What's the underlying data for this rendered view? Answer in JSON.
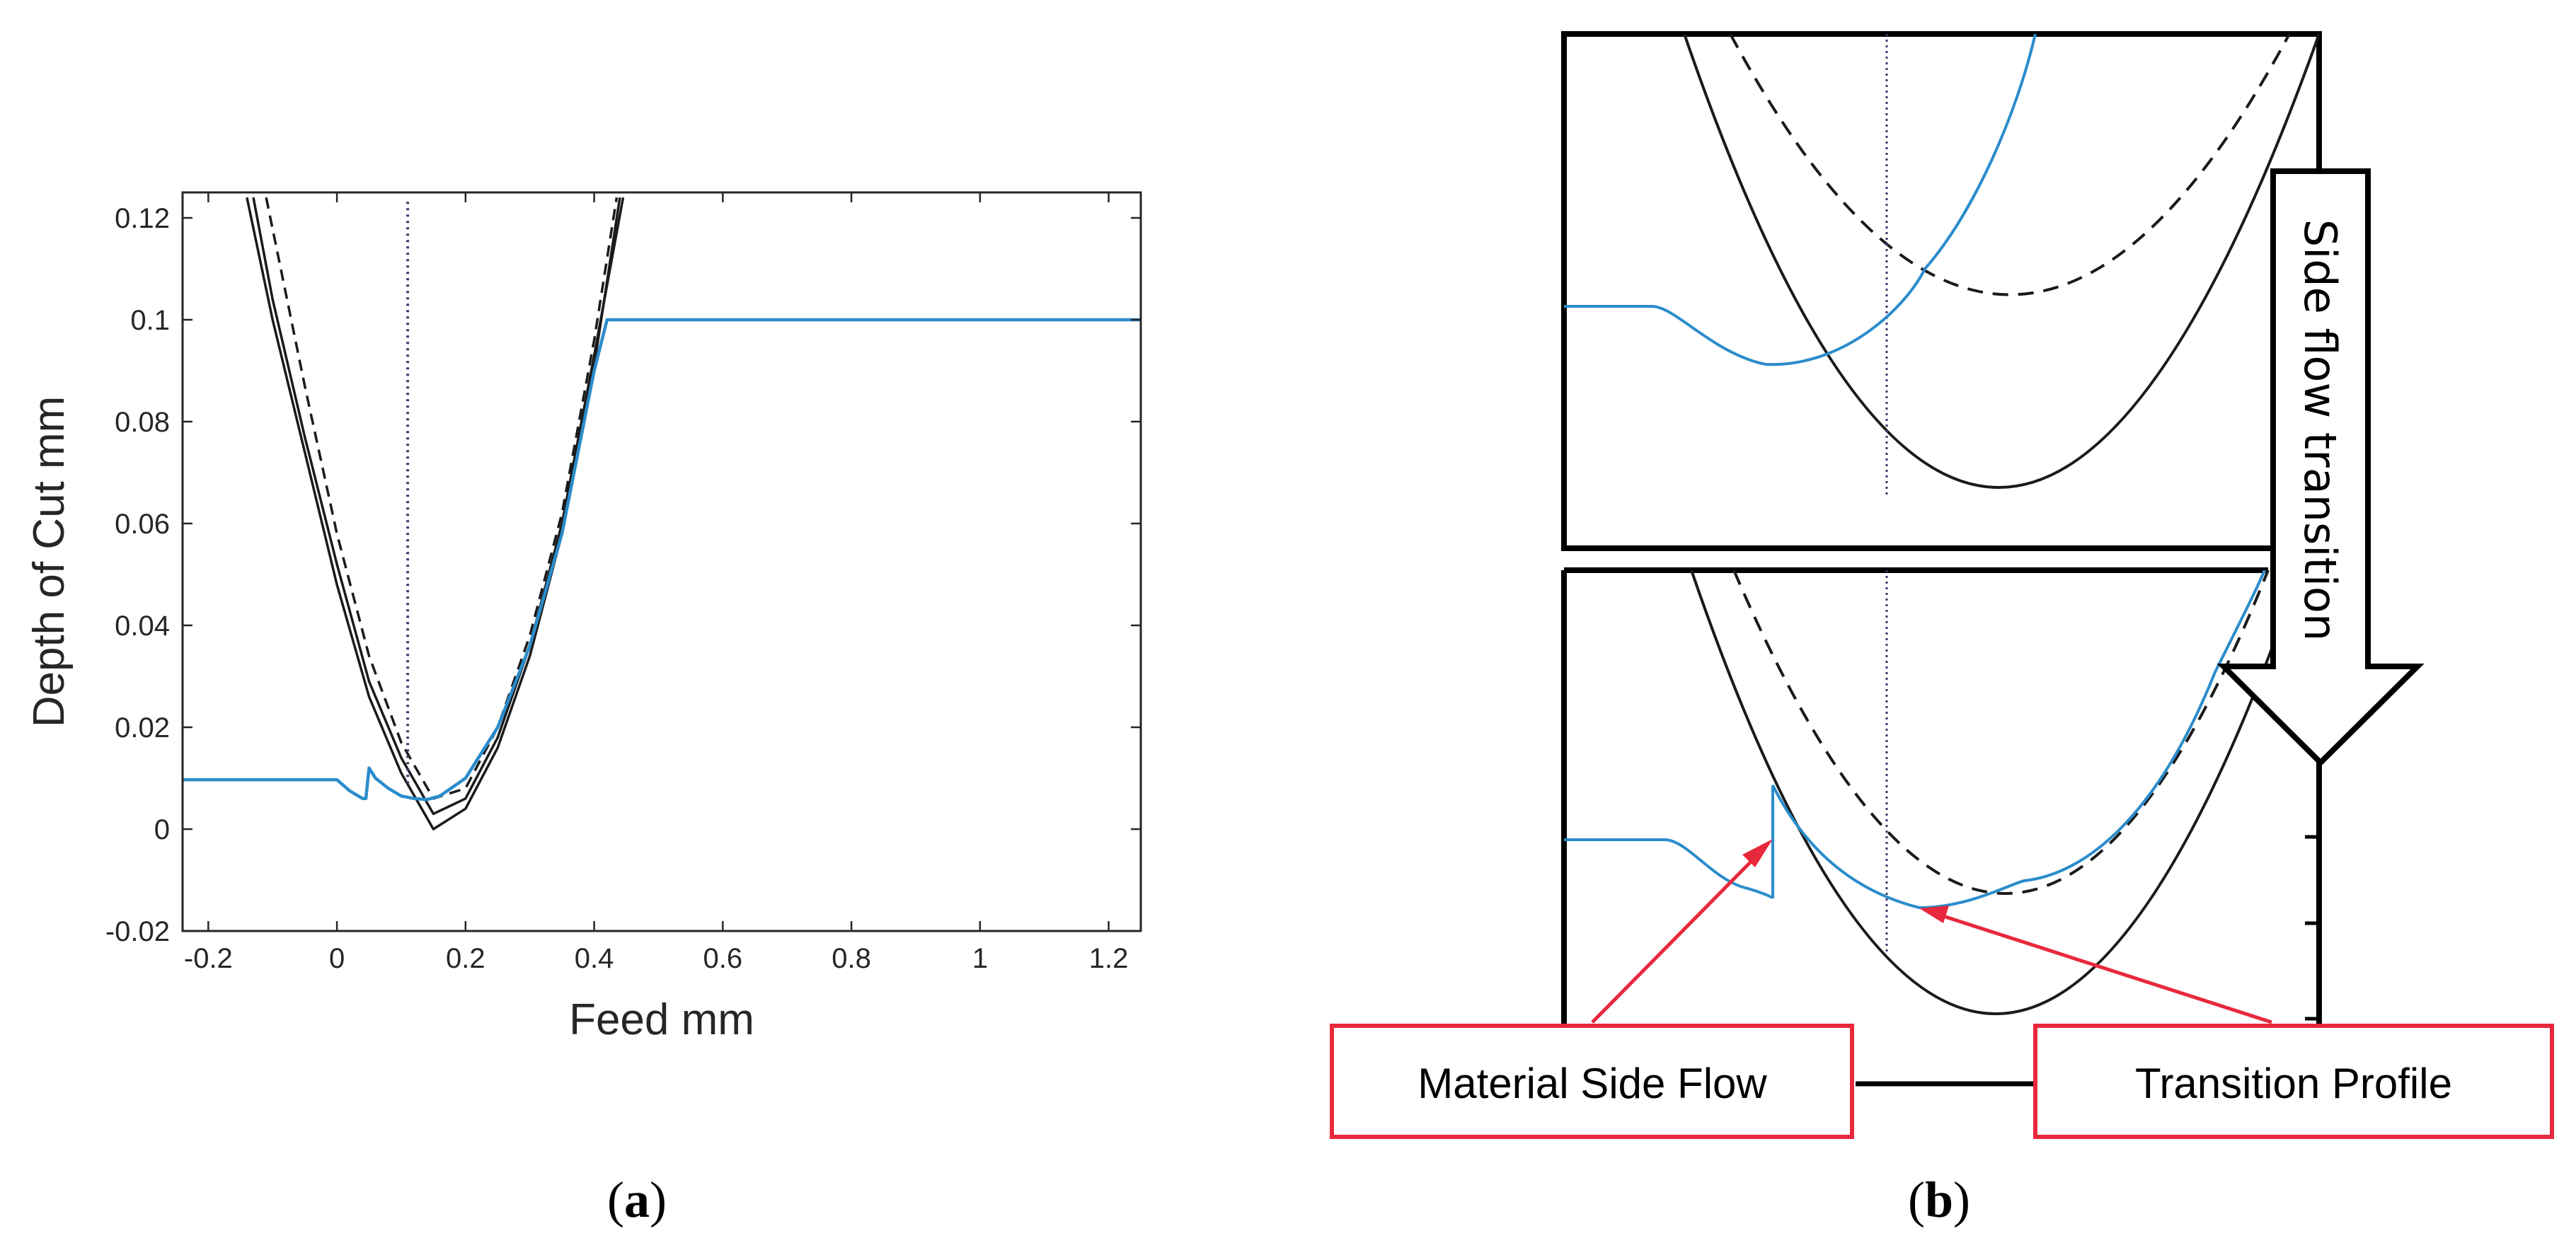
{
  "colors": {
    "profile": "#2b8ccb",
    "tool": "#1a1a1a",
    "arrow": "#e8283c",
    "guide": "#3a3a6a"
  },
  "panel_a": {
    "label_open": "(",
    "label_letter": "a",
    "label_close": ")"
  },
  "panel_b": {
    "label_open": "(",
    "label_letter": "b",
    "label_close": ")",
    "arrow_text": "Side flow transition",
    "callout_left": "Material Side Flow",
    "callout_right": "Transition Profile"
  },
  "chart_data": [
    {
      "type": "line",
      "title": "",
      "xlabel": "Feed mm",
      "ylabel": "Depth of Cut mm",
      "xlim": [
        -0.24,
        1.25
      ],
      "ylim": [
        -0.02,
        0.125
      ],
      "xticks": [
        -0.2,
        0,
        0.2,
        0.4,
        0.6,
        0.8,
        1,
        1.2
      ],
      "xtick_labels": [
        "-0.2",
        "0",
        "0.2",
        "0.4",
        "0.6",
        "0.8",
        "1",
        "1.2"
      ],
      "yticks": [
        -0.02,
        0,
        0.02,
        0.04,
        0.06,
        0.08,
        0.1,
        0.12
      ],
      "ytick_labels": [
        "-0.02",
        "0",
        "0.02",
        "0.04",
        "0.06",
        "0.08",
        "0.1",
        "0.12"
      ],
      "grid": false,
      "legend": "none",
      "series": [
        {
          "style": "solid-black",
          "x": [
            -0.14,
            -0.1,
            -0.05,
            0,
            0.05,
            0.1,
            0.15,
            0.2,
            0.25,
            0.3,
            0.35,
            0.4,
            0.44
          ],
          "y": [
            0.124,
            0.1,
            0.074,
            0.048,
            0.026,
            0.011,
            0.0,
            0.004,
            0.016,
            0.034,
            0.058,
            0.091,
            0.124
          ]
        },
        {
          "style": "solid-black",
          "x": [
            -0.13,
            -0.1,
            -0.05,
            0,
            0.05,
            0.1,
            0.15,
            0.2,
            0.25,
            0.3,
            0.35,
            0.4,
            0.445
          ],
          "y": [
            0.124,
            0.104,
            0.077,
            0.052,
            0.029,
            0.014,
            0.003,
            0.006,
            0.018,
            0.036,
            0.06,
            0.093,
            0.124
          ]
        },
        {
          "style": "dashed-black",
          "x": [
            -0.11,
            -0.05,
            0,
            0.05,
            0.1,
            0.15,
            0.2,
            0.25,
            0.3,
            0.35,
            0.4,
            0.435
          ],
          "y": [
            0.124,
            0.087,
            0.058,
            0.034,
            0.017,
            0.006,
            0.008,
            0.02,
            0.038,
            0.062,
            0.096,
            0.124
          ]
        },
        {
          "style": "dotted-vertical",
          "x": [
            0.11,
            0.11
          ],
          "y": [
            0.009,
            0.124
          ]
        },
        {
          "style": "solid-blue",
          "x": [
            -0.24,
            -0.1,
            0,
            0.02,
            0.04,
            0.045,
            0.05,
            0.06,
            0.08,
            0.1,
            0.12,
            0.14,
            0.16,
            0.2,
            0.25,
            0.3,
            0.35,
            0.4,
            0.42,
            0.6,
            0.8,
            1.0,
            1.25
          ],
          "y": [
            0.0097,
            0.0097,
            0.0097,
            0.0075,
            0.006,
            0.006,
            0.012,
            0.01,
            0.008,
            0.0065,
            0.006,
            0.0058,
            0.0065,
            0.01,
            0.02,
            0.036,
            0.058,
            0.09,
            0.1,
            0.1,
            0.1,
            0.1,
            0.1
          ]
        }
      ]
    }
  ]
}
